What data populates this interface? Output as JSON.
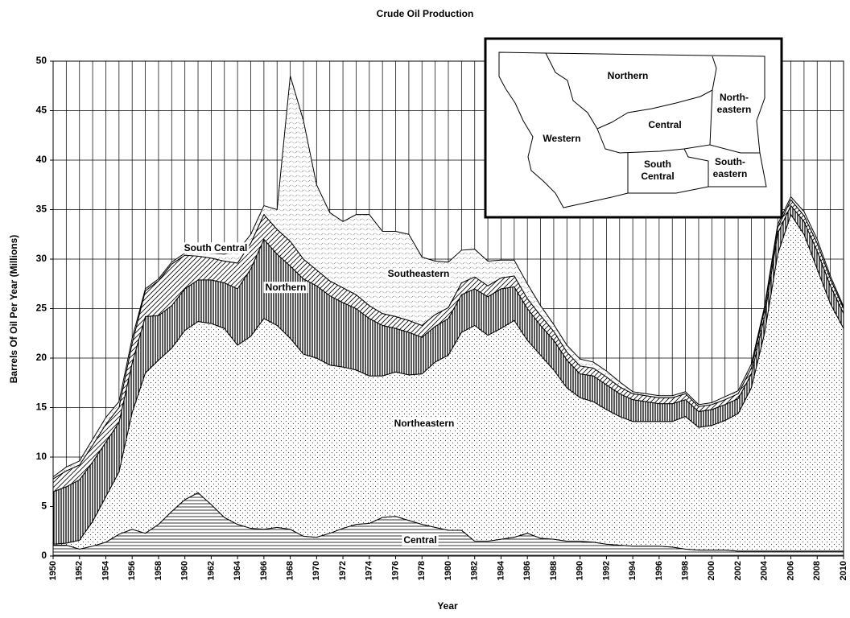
{
  "chart_data": {
    "type": "stacked_area",
    "title": "Crude Oil Production",
    "x_label": "Year",
    "y_label": "Barrels Of Oil Per Year (Millions)",
    "x": [
      1950,
      1951,
      1952,
      1953,
      1954,
      1955,
      1956,
      1957,
      1958,
      1959,
      1960,
      1961,
      1962,
      1963,
      1964,
      1965,
      1966,
      1967,
      1968,
      1969,
      1970,
      1971,
      1972,
      1973,
      1974,
      1975,
      1976,
      1977,
      1978,
      1979,
      1980,
      1981,
      1982,
      1983,
      1984,
      1985,
      1986,
      1987,
      1988,
      1989,
      1990,
      1991,
      1992,
      1993,
      1994,
      1995,
      1996,
      1997,
      1998,
      1999,
      2000,
      2001,
      2002,
      2003,
      2004,
      2005,
      2006,
      2007,
      2008,
      2009,
      2010
    ],
    "xlim": [
      1950,
      2010
    ],
    "xticks": [
      1950,
      1952,
      1954,
      1956,
      1958,
      1960,
      1962,
      1964,
      1966,
      1968,
      1970,
      1972,
      1974,
      1976,
      1978,
      1980,
      1982,
      1984,
      1986,
      1988,
      1990,
      1992,
      1994,
      1996,
      1998,
      2000,
      2002,
      2004,
      2006,
      2008,
      2010
    ],
    "ylim": [
      0,
      50
    ],
    "yticks": [
      0,
      5,
      10,
      15,
      20,
      25,
      30,
      35,
      40,
      45,
      50
    ],
    "grid": true,
    "series": [
      {
        "name": "Central",
        "pattern": "horizontal",
        "values": [
          1.1,
          1.1,
          0.7,
          1.0,
          1.4,
          2.2,
          2.7,
          2.3,
          3.2,
          4.5,
          5.7,
          6.4,
          5.2,
          3.9,
          3.2,
          2.8,
          2.7,
          2.9,
          2.7,
          2.0,
          1.9,
          2.3,
          2.8,
          3.2,
          3.3,
          3.9,
          4.0,
          3.6,
          3.2,
          2.9,
          2.6,
          2.6,
          1.5,
          1.5,
          1.7,
          1.9,
          2.3,
          1.8,
          1.7,
          1.5,
          1.5,
          1.4,
          1.2,
          1.1,
          1.0,
          1.0,
          1.0,
          0.9,
          0.7,
          0.6,
          0.6,
          0.6,
          0.5,
          0.5,
          0.5,
          0.5,
          0.5,
          0.5,
          0.5,
          0.5,
          0.5
        ]
      },
      {
        "name": "Northeastern",
        "pattern": "dots",
        "values": [
          0.1,
          0.2,
          0.9,
          2.5,
          4.6,
          6.3,
          11.8,
          16.2,
          16.6,
          16.5,
          17.1,
          17.3,
          18.3,
          19.1,
          18.1,
          19.4,
          21.3,
          20.4,
          19.3,
          18.4,
          18.1,
          17.0,
          16.3,
          15.6,
          14.9,
          14.3,
          14.6,
          14.7,
          15.2,
          16.7,
          17.7,
          20.0,
          21.8,
          20.8,
          21.3,
          21.9,
          19.5,
          18.5,
          17.1,
          15.5,
          14.5,
          14.2,
          13.6,
          13.0,
          12.6,
          12.6,
          12.6,
          12.7,
          13.4,
          12.4,
          12.6,
          13.1,
          13.9,
          16.5,
          22.0,
          30.0,
          34.0,
          32.0,
          28.5,
          25.0,
          22.5
        ]
      },
      {
        "name": "Northern",
        "pattern": "vertical",
        "values": [
          5.3,
          5.7,
          6.1,
          6.0,
          5.5,
          5.0,
          5.0,
          5.7,
          4.5,
          4.3,
          4.2,
          4.2,
          4.4,
          4.6,
          5.7,
          6.8,
          8.0,
          7.2,
          7.3,
          7.6,
          7.3,
          7.0,
          6.5,
          6.2,
          5.8,
          5.1,
          4.4,
          4.3,
          3.7,
          3.6,
          3.7,
          3.8,
          3.7,
          3.9,
          4.0,
          3.4,
          3.2,
          3.0,
          3.0,
          2.8,
          2.4,
          2.6,
          2.5,
          2.3,
          2.2,
          2.0,
          1.8,
          1.8,
          1.7,
          1.6,
          1.6,
          1.6,
          1.5,
          1.4,
          1.7,
          2.1,
          0.9,
          1.3,
          1.8,
          1.8,
          1.5
        ]
      },
      {
        "name": "South Central",
        "pattern": "diagonal",
        "values": [
          1.3,
          1.6,
          1.5,
          1.7,
          1.8,
          1.5,
          2.0,
          2.6,
          3.5,
          4.2,
          3.4,
          2.4,
          2.2,
          2.2,
          2.6,
          2.6,
          2.5,
          2.5,
          2.5,
          2.0,
          1.6,
          1.5,
          1.5,
          1.4,
          1.3,
          1.2,
          1.2,
          1.2,
          1.2,
          1.2,
          1.1,
          1.2,
          1.2,
          1.1,
          1.1,
          1.1,
          1.0,
          1.0,
          0.9,
          0.8,
          0.8,
          0.8,
          0.8,
          0.7,
          0.6,
          0.6,
          0.6,
          0.6,
          0.6,
          0.5,
          0.5,
          0.5,
          0.5,
          0.6,
          0.7,
          0.6,
          0.6,
          0.6,
          0.8,
          0.7,
          0.5
        ]
      },
      {
        "name": "Southeastern",
        "pattern": "wave",
        "values": [
          0.2,
          0.4,
          0.4,
          0.6,
          0.7,
          0.6,
          0.5,
          0.2,
          0.2,
          0.2,
          0.2,
          0.5,
          0.5,
          0.7,
          1.2,
          0.9,
          0.9,
          2.0,
          16.7,
          14.0,
          8.6,
          6.9,
          6.7,
          8.1,
          9.2,
          8.3,
          8.6,
          8.7,
          6.9,
          5.4,
          4.6,
          3.3,
          2.8,
          2.5,
          1.8,
          1.6,
          1.5,
          1.0,
          0.7,
          0.7,
          0.7,
          0.6,
          0.6,
          0.5,
          0.2,
          0.2,
          0.2,
          0.2,
          0.2,
          0.2,
          0.2,
          0.3,
          0.3,
          0.4,
          0.3,
          0.3,
          0.3,
          0.4,
          0.4,
          0.3,
          0.2
        ]
      }
    ]
  },
  "inset_map": {
    "labels": [
      {
        "lines": [
          "Northern"
        ]
      },
      {
        "lines": [
          "North-",
          "eastern"
        ]
      },
      {
        "lines": [
          "Central"
        ]
      },
      {
        "lines": [
          "Western"
        ]
      },
      {
        "lines": [
          "South",
          "Central"
        ]
      },
      {
        "lines": [
          "South-",
          "eastern"
        ]
      }
    ]
  }
}
